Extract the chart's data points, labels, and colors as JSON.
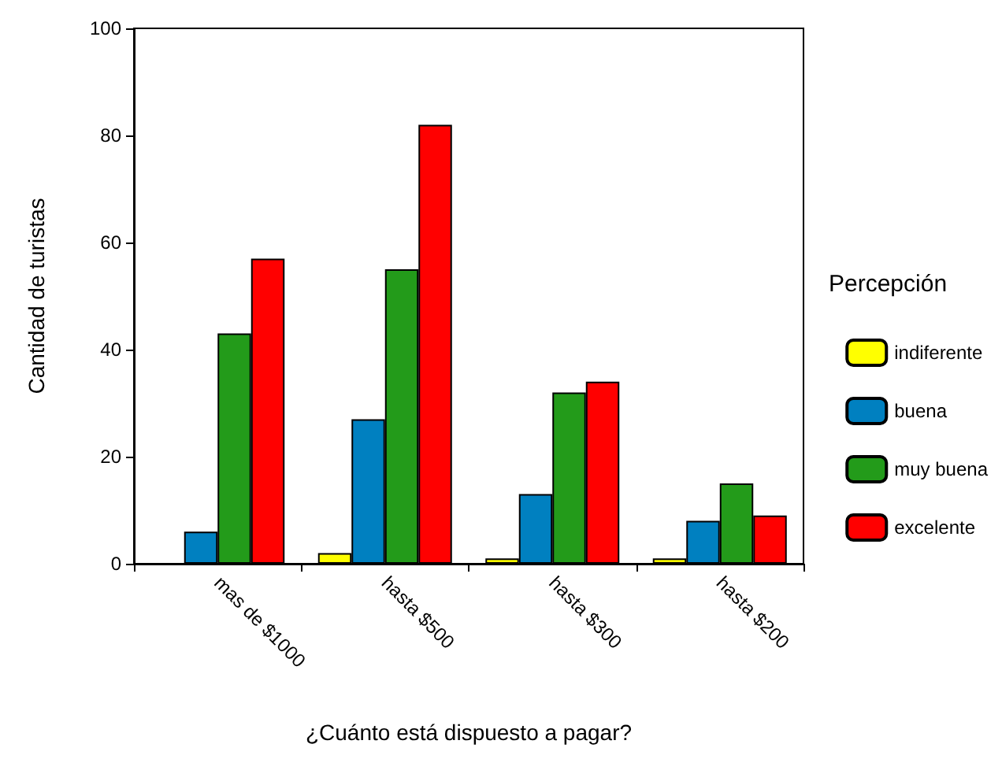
{
  "chart_data": {
    "type": "bar",
    "xlabel": "¿Cuánto está dispuesto a pagar?",
    "ylabel": "Cantidad de turistas",
    "legend_title": "Percepción",
    "categories": [
      "mas de $1000",
      "hasta $500",
      "hasta $300",
      "hasta $200"
    ],
    "series": [
      {
        "name": "indiferente",
        "color": "#ffff00",
        "values": [
          null,
          2,
          1,
          1
        ]
      },
      {
        "name": "buena",
        "color": "#0080c0",
        "values": [
          6,
          27,
          13,
          8
        ]
      },
      {
        "name": "muy buena",
        "color": "#239b1a",
        "values": [
          43,
          55,
          32,
          15
        ]
      },
      {
        "name": "excelente",
        "color": "#ff0000",
        "values": [
          57,
          82,
          34,
          9
        ]
      }
    ],
    "ylim": [
      0,
      100
    ],
    "yticks": [
      0,
      20,
      40,
      60,
      80,
      100
    ],
    "grid": false,
    "legend": "right"
  }
}
